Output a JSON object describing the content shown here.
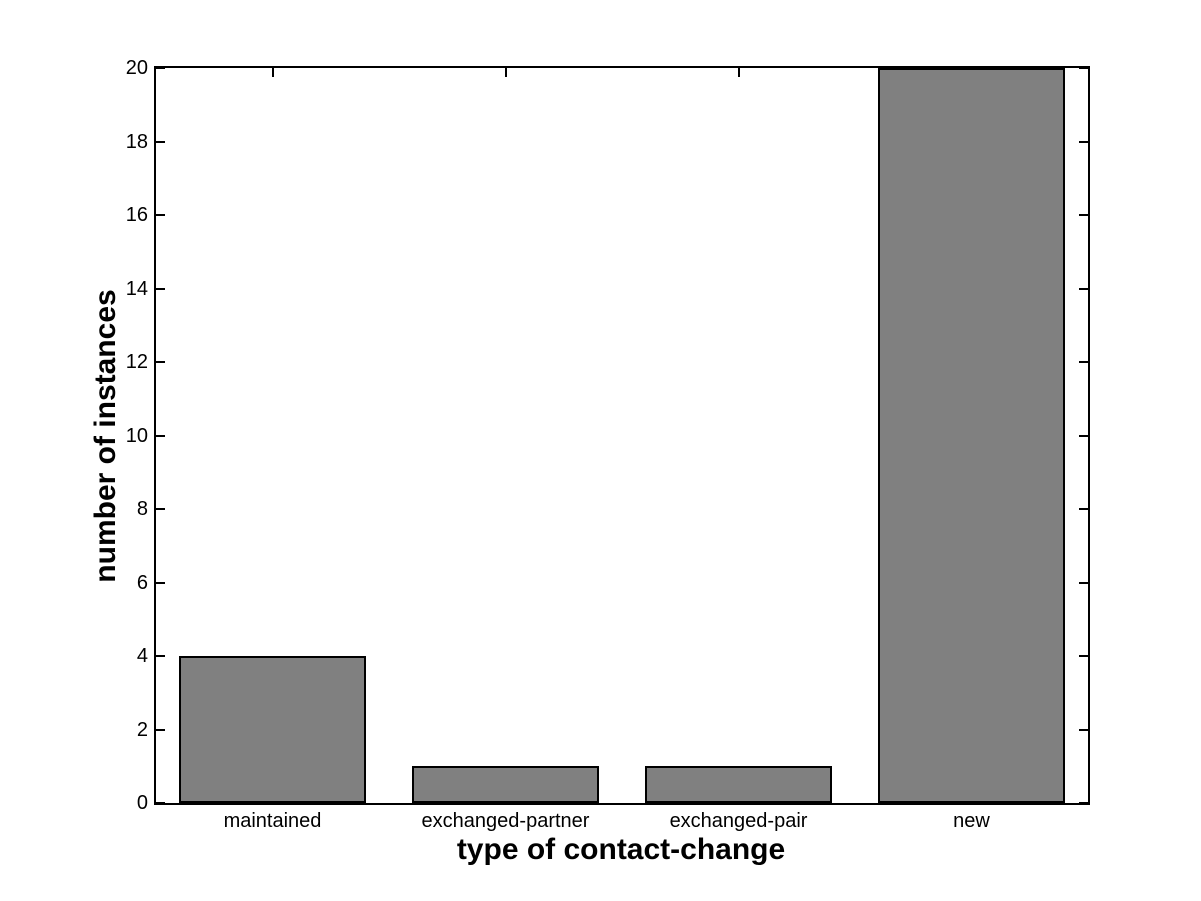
{
  "figure": {
    "background_color": "#ffffff",
    "axis_color": "#000000",
    "text_color": "#000000"
  },
  "chart_data": {
    "type": "bar",
    "title": "",
    "categories": [
      "maintained",
      "exchanged-partner",
      "exchanged-pair",
      "new"
    ],
    "values": [
      4,
      1,
      1,
      20
    ],
    "xlabel": "type of contact-change",
    "ylabel": "number of instances",
    "ylim": [
      0,
      20
    ],
    "yticks": [
      0,
      2,
      4,
      6,
      8,
      10,
      12,
      14,
      16,
      18,
      20
    ],
    "grid": "off",
    "legend": "none",
    "bar_width_fraction": 0.8,
    "bar_color": "#808080",
    "bar_edge_color": "#000000",
    "tick_direction": "in"
  }
}
